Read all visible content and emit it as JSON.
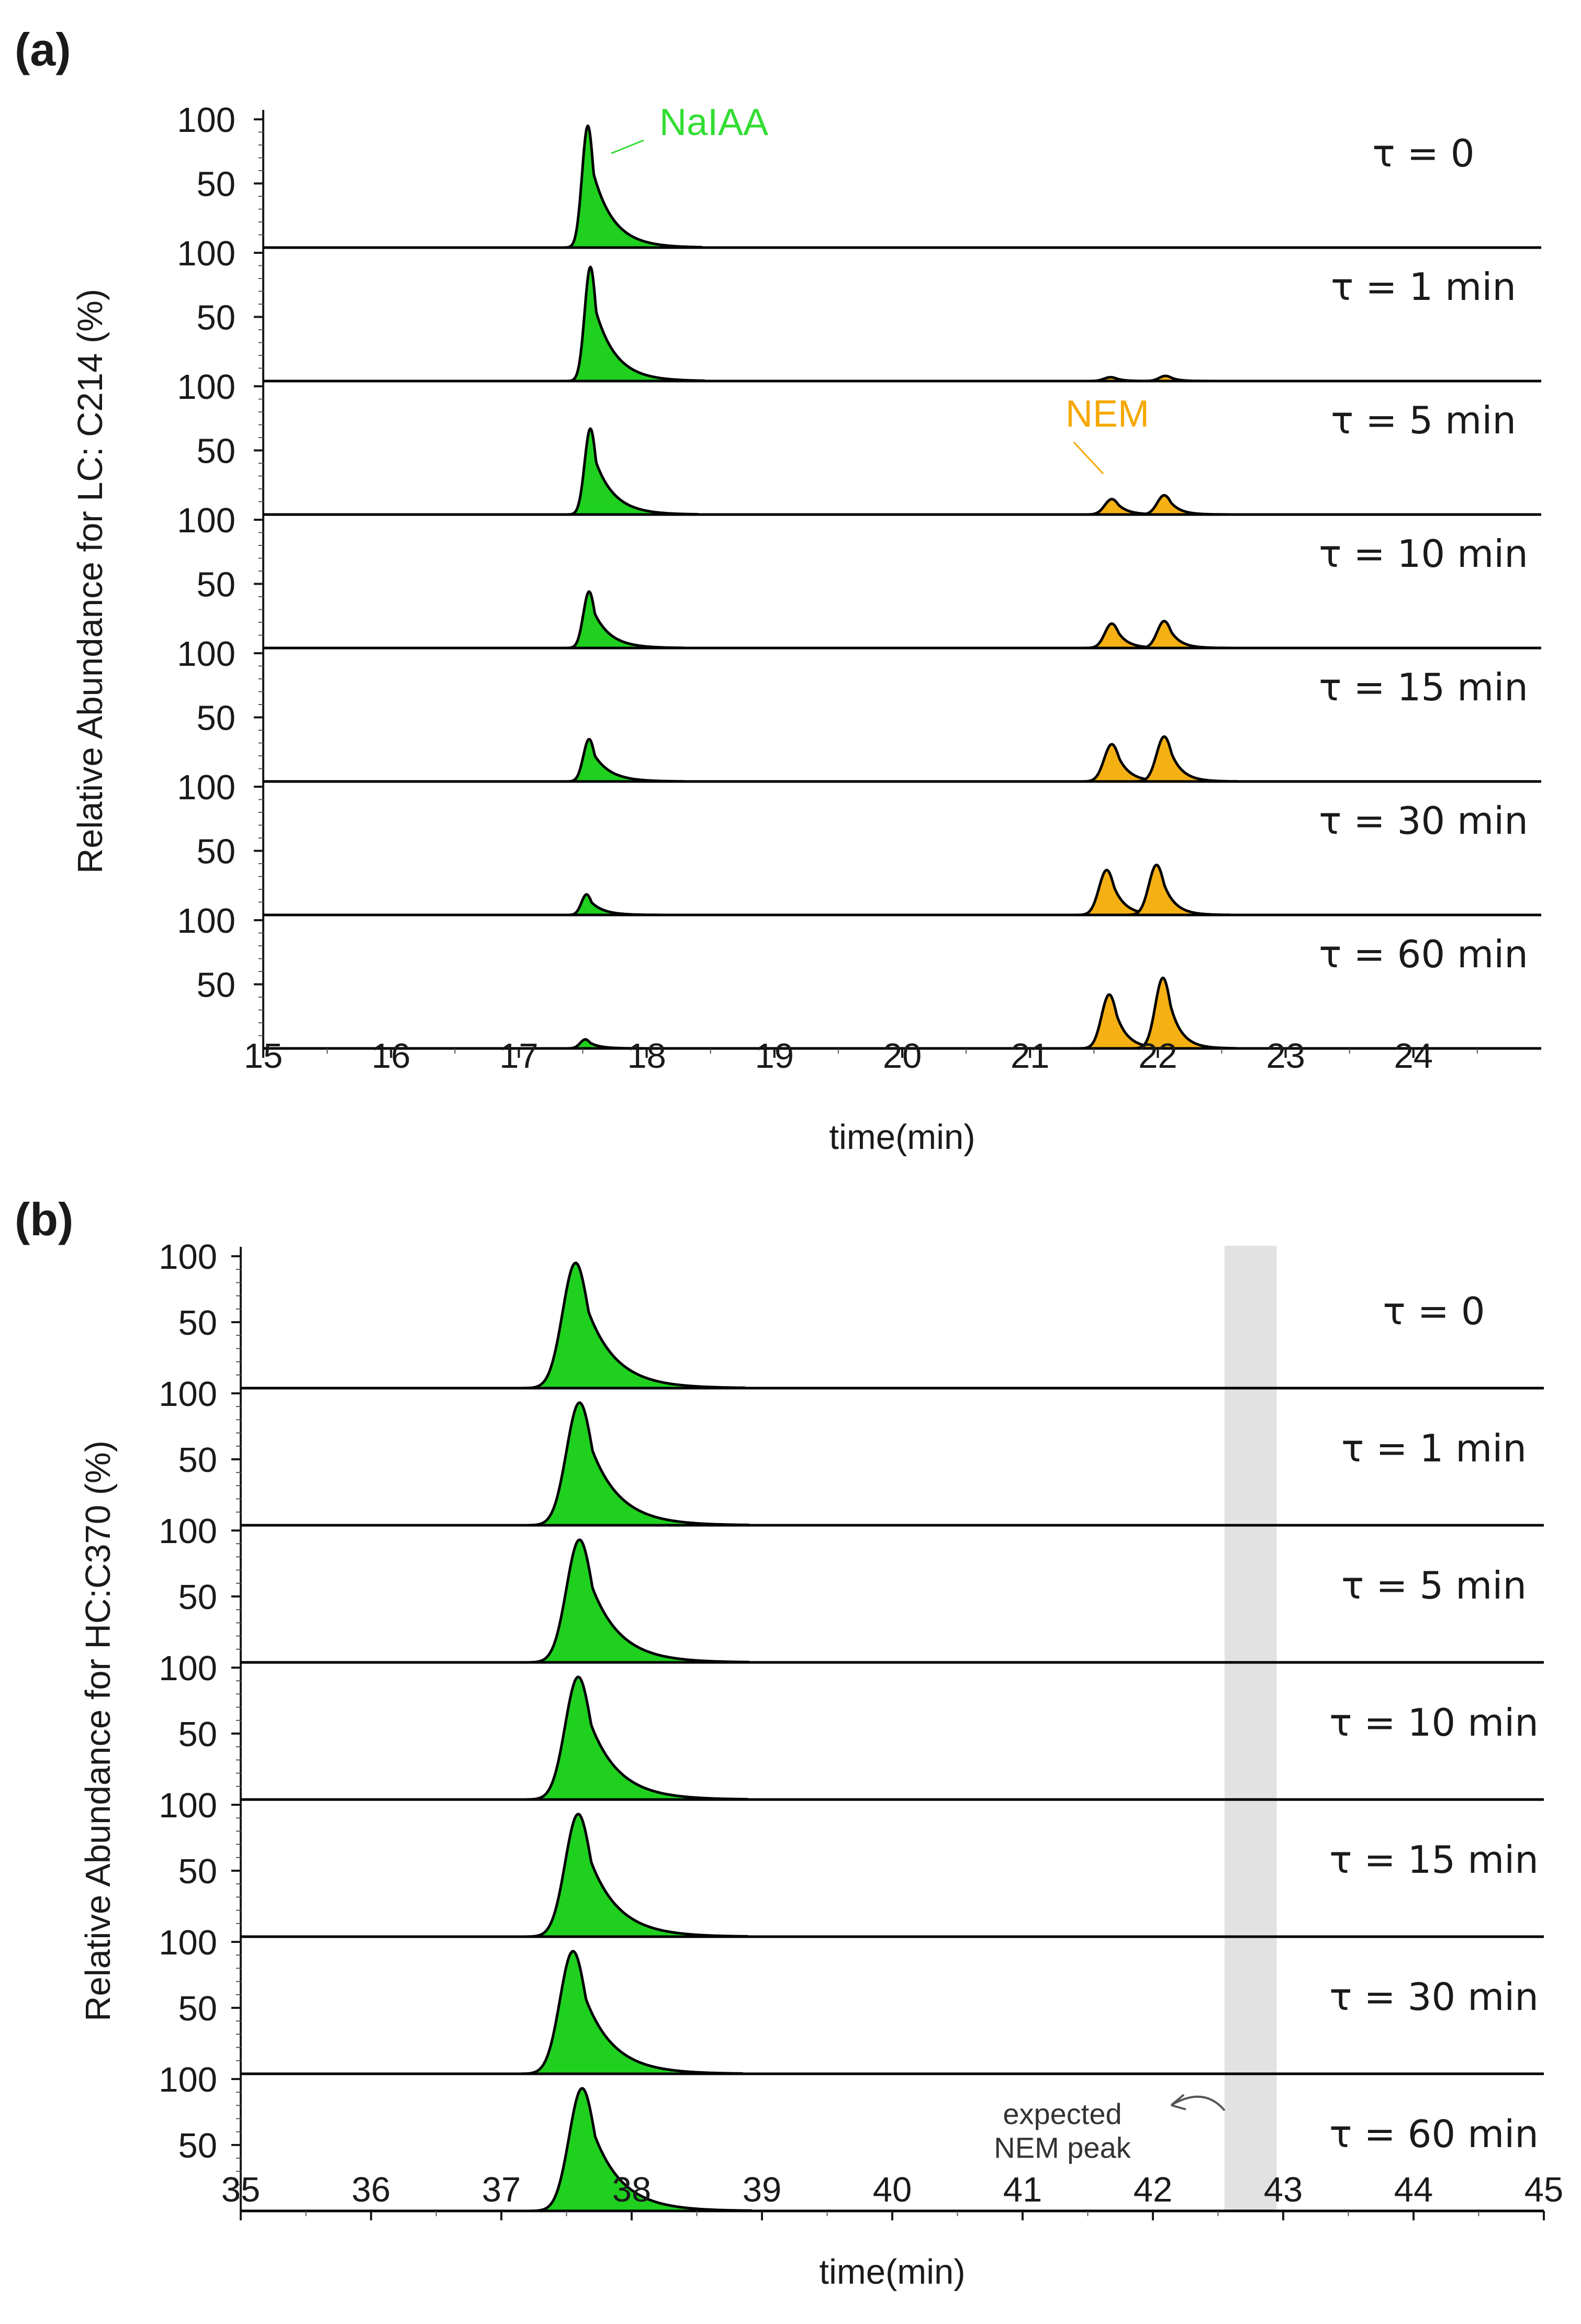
{
  "panels": [
    {
      "id": "a",
      "label": "(a)",
      "ylabel": "Relative Abundance for LC: C214 (%)",
      "xlabel": "time(min)",
      "ytick_labels": [
        "100",
        "50"
      ],
      "highlight": null,
      "annotations": [
        {
          "text": "NaIAA",
          "color": "#33dd33",
          "x": 17.62,
          "trace": 0
        },
        {
          "text": "NEM",
          "color": "#f5a800",
          "x": 21.68,
          "trace": 2
        }
      ]
    },
    {
      "id": "b",
      "label": "(b)",
      "ylabel": "Relative Abundance for HC:C370 (%)",
      "xlabel": "time(min)",
      "ytick_labels": [
        "100",
        "50"
      ],
      "highlight": {
        "x_range": [
          42.55,
          42.95
        ],
        "color": "#e2e2e2"
      },
      "annotations": [
        {
          "text": "expected\nNEM peak",
          "color": "#333333",
          "x": 42.55,
          "trace": 6
        }
      ]
    }
  ],
  "colors": {
    "naiaa_fill": "#1fd01f",
    "nem_fill": "#f5b014",
    "trace_line": "#000000",
    "highlight_band": "#e2e2e2"
  },
  "chart_data": [
    {
      "type": "line",
      "title": "(a)",
      "xlabel": "time(min)",
      "ylabel": "Relative Abundance for LC: C214 (%)",
      "xlim": [
        15,
        25
      ],
      "x_ticks": [
        15,
        16,
        17,
        18,
        19,
        20,
        21,
        22,
        23,
        24
      ],
      "ylim": [
        0,
        100
      ],
      "y_ticks": [
        50,
        100
      ],
      "series": [
        {
          "name": "τ = 0",
          "peaks": [
            {
              "label": "NaIAA",
              "center": 17.54,
              "height": 95,
              "width": 0.045,
              "tail": 0.16,
              "color": "#1fd01f"
            }
          ]
        },
        {
          "name": "τ = 1 min",
          "peaks": [
            {
              "label": "NaIAA",
              "center": 17.56,
              "height": 89,
              "width": 0.045,
              "tail": 0.16,
              "color": "#1fd01f"
            },
            {
              "label": "NEM",
              "center": 21.63,
              "height": 3,
              "width": 0.05,
              "tail": 0.06,
              "color": "#f5b014"
            },
            {
              "label": "NEM",
              "center": 22.06,
              "height": 4,
              "width": 0.05,
              "tail": 0.06,
              "color": "#f5b014"
            }
          ]
        },
        {
          "name": "τ = 5 min",
          "peaks": [
            {
              "label": "NaIAA",
              "center": 17.56,
              "height": 67,
              "width": 0.045,
              "tail": 0.15,
              "color": "#1fd01f"
            },
            {
              "label": "NEM",
              "center": 21.64,
              "height": 12,
              "width": 0.055,
              "tail": 0.08,
              "color": "#f5b014"
            },
            {
              "label": "NEM",
              "center": 22.05,
              "height": 15,
              "width": 0.055,
              "tail": 0.08,
              "color": "#f5b014"
            }
          ]
        },
        {
          "name": "τ = 10 min",
          "peaks": [
            {
              "label": "NaIAA",
              "center": 17.55,
              "height": 44,
              "width": 0.045,
              "tail": 0.13,
              "color": "#1fd01f"
            },
            {
              "label": "NEM",
              "center": 21.64,
              "height": 19,
              "width": 0.055,
              "tail": 0.08,
              "color": "#f5b014"
            },
            {
              "label": "NEM",
              "center": 22.05,
              "height": 21,
              "width": 0.055,
              "tail": 0.08,
              "color": "#f5b014"
            }
          ]
        },
        {
          "name": "τ = 15 min",
          "peaks": [
            {
              "label": "NaIAA",
              "center": 17.55,
              "height": 33,
              "width": 0.045,
              "tail": 0.13,
              "color": "#1fd01f"
            },
            {
              "label": "NEM",
              "center": 21.64,
              "height": 29,
              "width": 0.06,
              "tail": 0.09,
              "color": "#f5b014"
            },
            {
              "label": "NEM",
              "center": 22.05,
              "height": 35,
              "width": 0.06,
              "tail": 0.09,
              "color": "#f5b014"
            }
          ]
        },
        {
          "name": "τ = 30 min",
          "peaks": [
            {
              "label": "NaIAA",
              "center": 17.53,
              "height": 16,
              "width": 0.04,
              "tail": 0.1,
              "color": "#1fd01f"
            },
            {
              "label": "NEM",
              "center": 21.6,
              "height": 35,
              "width": 0.06,
              "tail": 0.09,
              "color": "#f5b014"
            },
            {
              "label": "NEM",
              "center": 21.99,
              "height": 39,
              "width": 0.06,
              "tail": 0.09,
              "color": "#f5b014"
            }
          ]
        },
        {
          "name": "τ = 60 min",
          "peaks": [
            {
              "label": "NaIAA",
              "center": 17.52,
              "height": 7,
              "width": 0.04,
              "tail": 0.08,
              "color": "#1fd01f"
            },
            {
              "label": "NEM",
              "center": 21.62,
              "height": 42,
              "width": 0.06,
              "tail": 0.09,
              "color": "#f5b014"
            },
            {
              "label": "NEM",
              "center": 22.04,
              "height": 55,
              "width": 0.06,
              "tail": 0.09,
              "color": "#f5b014"
            }
          ]
        }
      ]
    },
    {
      "type": "line",
      "title": "(b)",
      "xlabel": "time(min)",
      "ylabel": "Relative Abundance for HC:C370 (%)",
      "xlim": [
        35,
        45
      ],
      "x_ticks": [
        35,
        36,
        37,
        38,
        39,
        40,
        41,
        42,
        43,
        44,
        45
      ],
      "ylim": [
        0,
        100
      ],
      "y_ticks": [
        50,
        100
      ],
      "series": [
        {
          "name": "τ = 0",
          "peaks": [
            {
              "label": "NaIAA",
              "center": 37.57,
              "height": 95,
              "width": 0.1,
              "tail": 0.22,
              "color": "#1fd01f"
            }
          ]
        },
        {
          "name": "τ = 1 min",
          "peaks": [
            {
              "label": "NaIAA",
              "center": 37.6,
              "height": 93,
              "width": 0.1,
              "tail": 0.22,
              "color": "#1fd01f"
            }
          ]
        },
        {
          "name": "τ = 5 min",
          "peaks": [
            {
              "label": "NaIAA",
              "center": 37.6,
              "height": 93,
              "width": 0.1,
              "tail": 0.22,
              "color": "#1fd01f"
            }
          ]
        },
        {
          "name": "τ = 10 min",
          "peaks": [
            {
              "label": "NaIAA",
              "center": 37.59,
              "height": 93,
              "width": 0.1,
              "tail": 0.22,
              "color": "#1fd01f"
            }
          ]
        },
        {
          "name": "τ = 15 min",
          "peaks": [
            {
              "label": "NaIAA",
              "center": 37.59,
              "height": 93,
              "width": 0.1,
              "tail": 0.22,
              "color": "#1fd01f"
            }
          ]
        },
        {
          "name": "τ = 30 min",
          "peaks": [
            {
              "label": "NaIAA",
              "center": 37.55,
              "height": 93,
              "width": 0.1,
              "tail": 0.22,
              "color": "#1fd01f"
            }
          ]
        },
        {
          "name": "τ = 60 min",
          "peaks": [
            {
              "label": "NaIAA",
              "center": 37.62,
              "height": 93,
              "width": 0.1,
              "tail": 0.22,
              "color": "#1fd01f"
            }
          ]
        }
      ]
    }
  ]
}
